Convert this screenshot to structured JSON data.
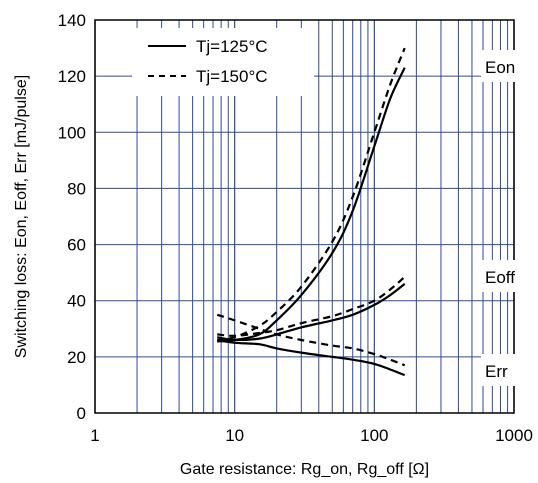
{
  "chart_data": {
    "type": "line",
    "xlabel": "Gate resistance: Rg_on, Rg_off  [Ω]",
    "ylabel": "Switching loss: Eon, Eoff, Err [mJ/pulse]",
    "x_scale": "log",
    "xlim": [
      1,
      1000
    ],
    "ylim": [
      0,
      140
    ],
    "x_ticks": [
      "1",
      "10",
      "100",
      "1000"
    ],
    "y_ticks": [
      "0",
      "20",
      "40",
      "60",
      "80",
      "100",
      "120",
      "140"
    ],
    "grid": true,
    "legend_position": "top-left",
    "legend": [
      {
        "label": "Tj=125°C",
        "style": "solid"
      },
      {
        "label": "Tj=150°C",
        "style": "dashed"
      }
    ],
    "curve_labels": [
      "Eon",
      "Eoff",
      "Err"
    ],
    "series": [
      {
        "curve": "Eon",
        "legend": "Tj=125°C",
        "style": "solid",
        "x": [
          7.5,
          10,
          15,
          20,
          30,
          50,
          70,
          100,
          130,
          165
        ],
        "y": [
          25.5,
          26,
          28,
          33,
          42,
          57,
          72,
          95,
          112,
          123
        ]
      },
      {
        "curve": "Eon",
        "legend": "Tj=150°C",
        "style": "dashed",
        "x": [
          7.5,
          10,
          15,
          20,
          30,
          50,
          70,
          100,
          130,
          165
        ],
        "y": [
          26,
          27,
          31,
          36,
          45,
          61,
          77,
          100,
          117,
          130
        ]
      },
      {
        "curve": "Eoff",
        "legend": "Tj=125°C",
        "style": "solid",
        "x": [
          7.5,
          10,
          15,
          20,
          30,
          50,
          70,
          100,
          130,
          165
        ],
        "y": [
          27,
          26,
          26.5,
          28,
          30.5,
          33,
          35,
          38.5,
          42,
          46
        ]
      },
      {
        "curve": "Eoff",
        "legend": "Tj=150°C",
        "style": "dashed",
        "x": [
          7.5,
          10,
          15,
          20,
          30,
          50,
          70,
          100,
          130,
          165
        ],
        "y": [
          28,
          27.5,
          28.5,
          29.5,
          32,
          34.5,
          37,
          40,
          44,
          48.5
        ]
      },
      {
        "curve": "Err",
        "legend": "Tj=125°C",
        "style": "solid",
        "x": [
          7.5,
          10,
          15,
          20,
          30,
          50,
          70,
          100,
          130,
          165
        ],
        "y": [
          26,
          25,
          24.5,
          23,
          21.5,
          20,
          19,
          17.5,
          15.5,
          13.5
        ]
      },
      {
        "curve": "Err",
        "legend": "Tj=150°C",
        "style": "dashed",
        "x": [
          7.5,
          10,
          15,
          20,
          30,
          50,
          70,
          100,
          130,
          165
        ],
        "y": [
          35,
          33,
          30,
          28,
          26,
          24,
          23,
          21,
          19,
          17
        ]
      }
    ]
  }
}
